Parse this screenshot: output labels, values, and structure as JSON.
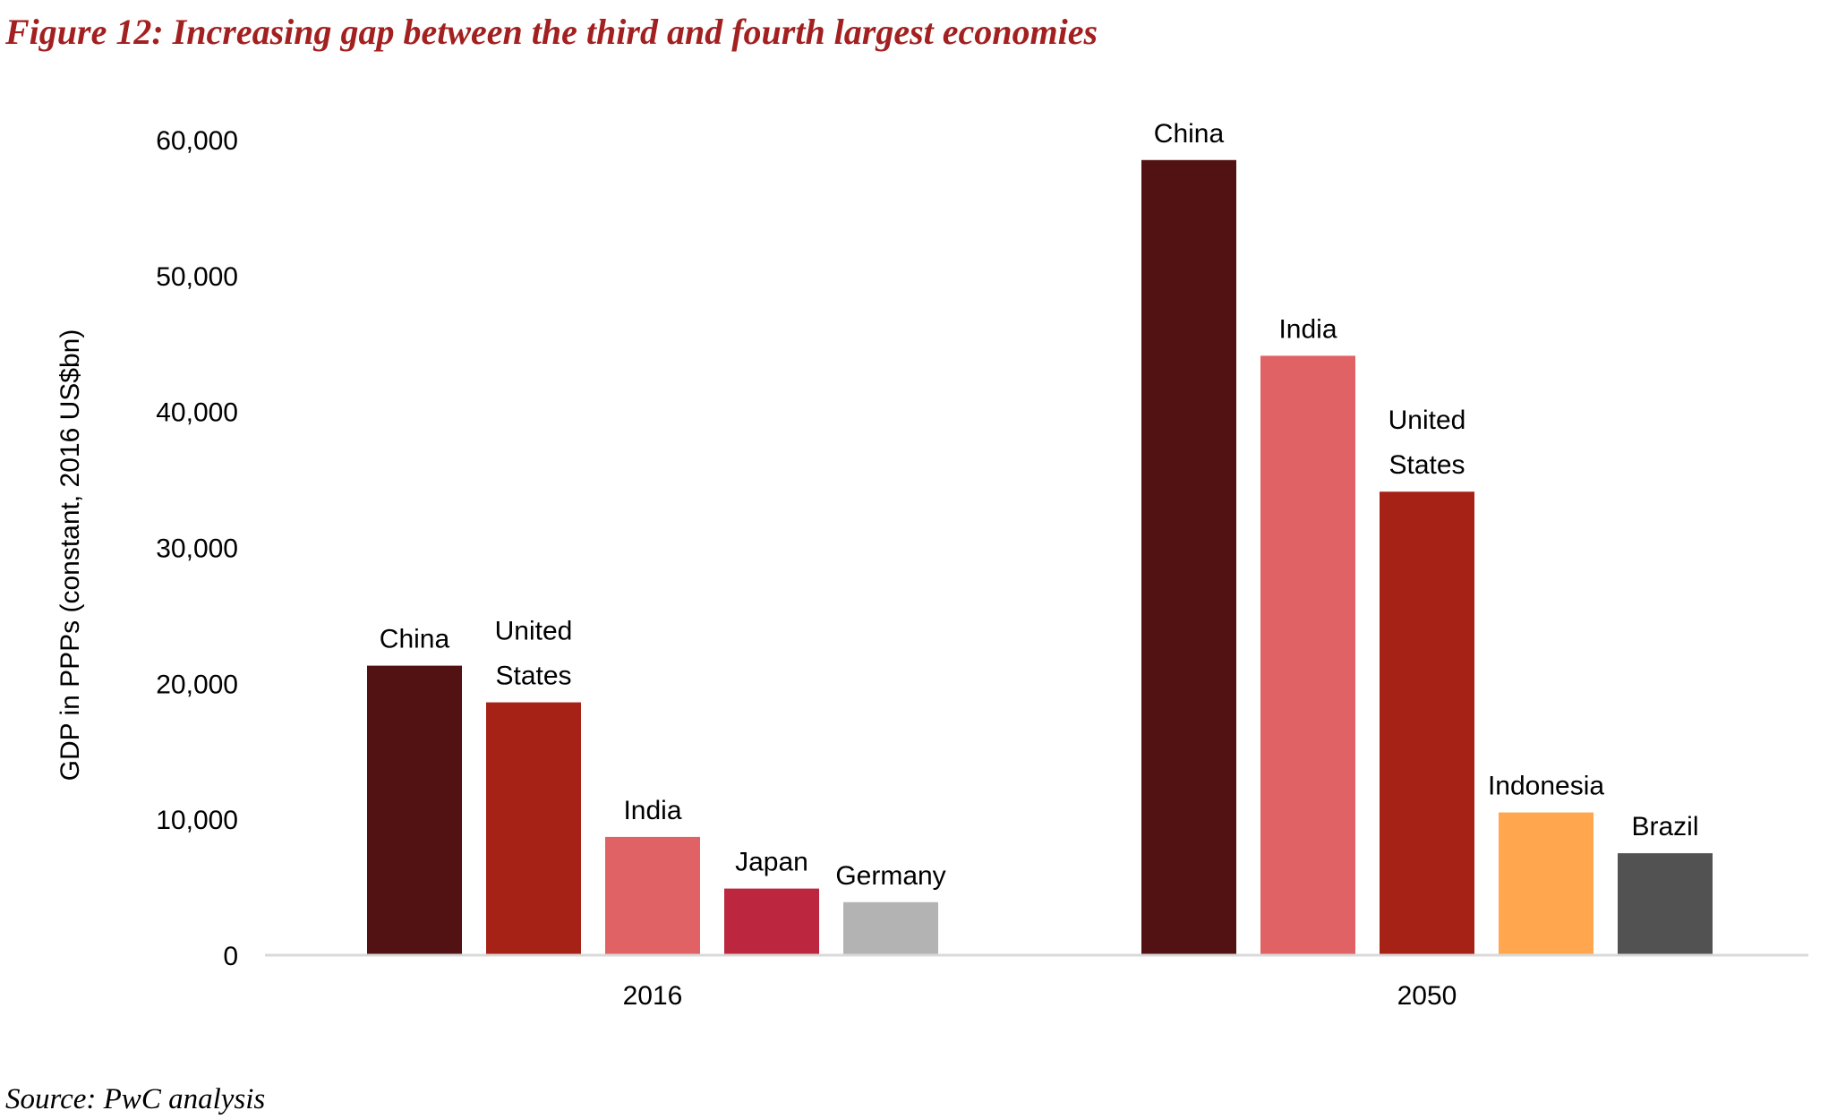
{
  "figure": {
    "title": "Figure 12: Increasing gap between the third and fourth largest economies",
    "source": "Source: PwC analysis"
  },
  "chart_data": {
    "type": "bar",
    "title": "",
    "xlabel": "",
    "ylabel": "GDP in PPPs (constant, 2016 US$bn)",
    "ylim": [
      0,
      60000
    ],
    "yticks": [
      0,
      10000,
      20000,
      30000,
      40000,
      50000,
      60000
    ],
    "ytick_labels": [
      "0",
      "10,000",
      "20,000",
      "30,000",
      "40,000",
      "50,000",
      "60,000"
    ],
    "grid": false,
    "legend": "none",
    "groups": [
      {
        "name": "2016",
        "bars": [
          {
            "label": "China",
            "value": 21300,
            "color": "#521112"
          },
          {
            "label": "United States",
            "value": 18600,
            "color": "#A62116"
          },
          {
            "label": "India",
            "value": 8700,
            "color": "#E06264"
          },
          {
            "label": "Japan",
            "value": 4900,
            "color": "#BC263E"
          },
          {
            "label": "Germany",
            "value": 3900,
            "color": "#B3B3B3"
          }
        ]
      },
      {
        "name": "2050",
        "bars": [
          {
            "label": "China",
            "value": 58500,
            "color": "#521112"
          },
          {
            "label": "India",
            "value": 44100,
            "color": "#E06264"
          },
          {
            "label": "United States",
            "value": 34100,
            "color": "#A62116"
          },
          {
            "label": "Indonesia",
            "value": 10500,
            "color": "#FFA64F"
          },
          {
            "label": "Brazil",
            "value": 7500,
            "color": "#525252"
          }
        ]
      }
    ]
  }
}
